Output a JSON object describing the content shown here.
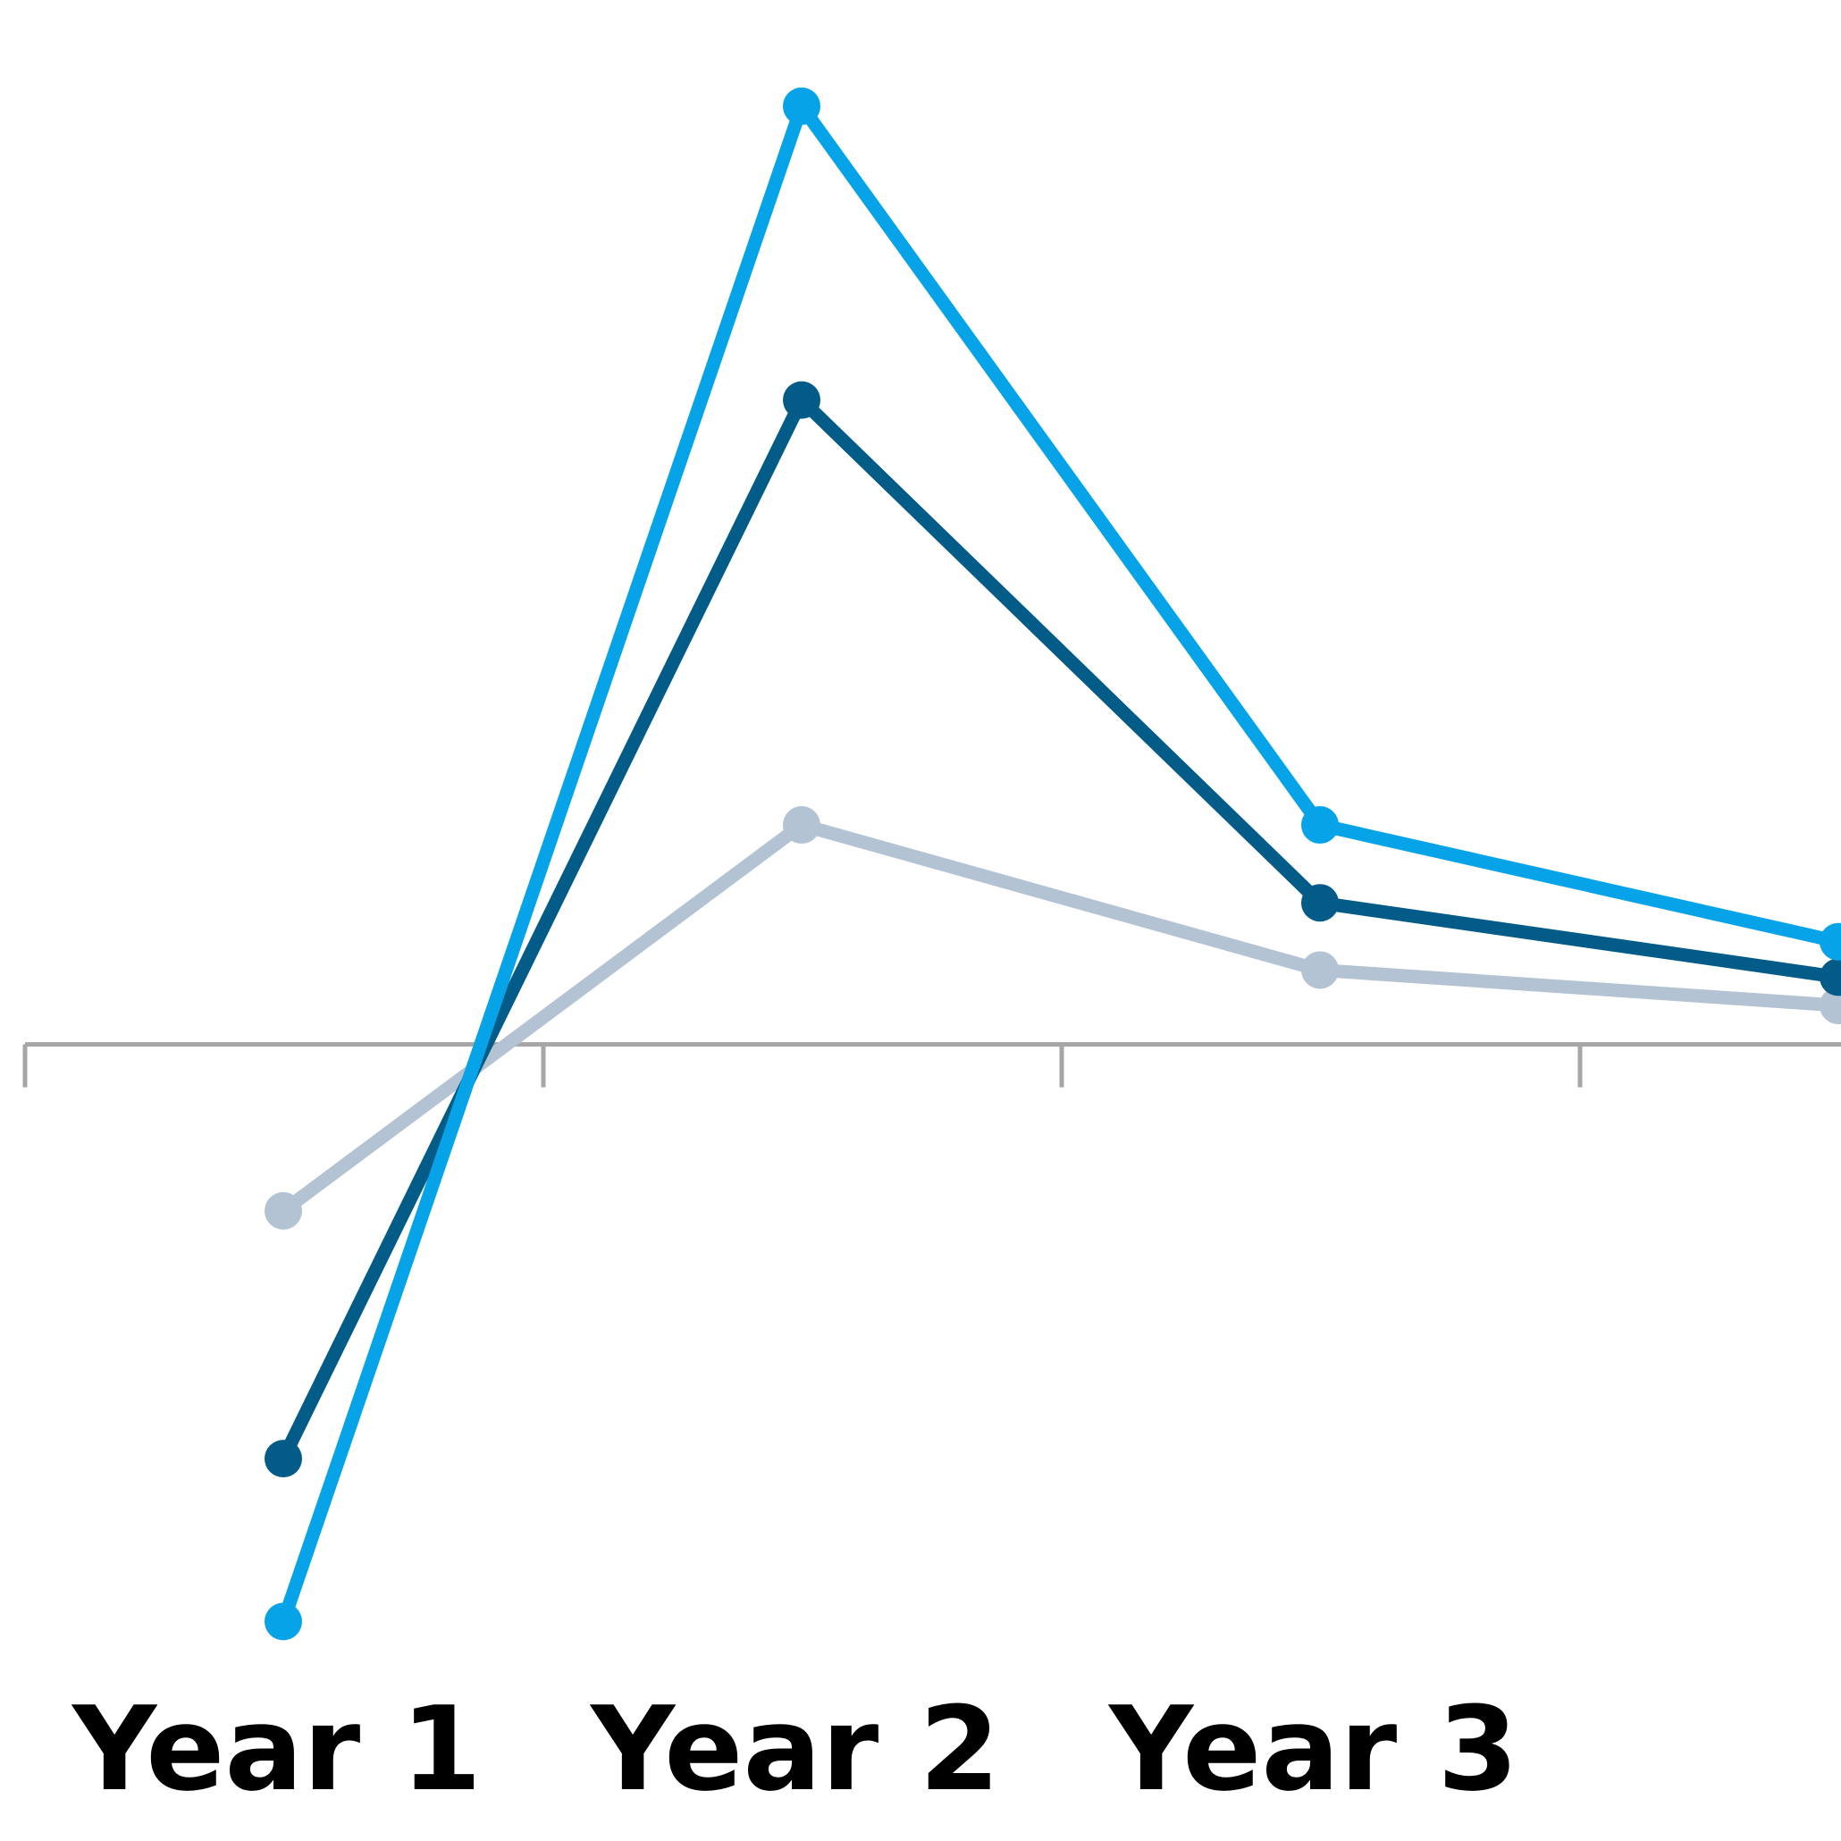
{
  "chart_data": {
    "type": "line",
    "categories": [
      "Year 1",
      "Year 2",
      "Year 3",
      ""
    ],
    "title": "",
    "xlabel": "",
    "ylabel": "",
    "ylim": [
      -2.25,
      2.95
    ],
    "grid": false,
    "legend": "none",
    "series": [
      {
        "values": [
          -1.63,
          2.65,
          0.62,
          0.29
        ],
        "color": "#06A3E8"
      },
      {
        "values": [
          -1.17,
          1.82,
          0.4,
          0.19
        ],
        "color": "#035C87"
      },
      {
        "values": [
          -0.47,
          0.62,
          0.21,
          0.11
        ],
        "color": "#B3C3D3"
      }
    ],
    "axis_color": "#A6A6A6"
  }
}
